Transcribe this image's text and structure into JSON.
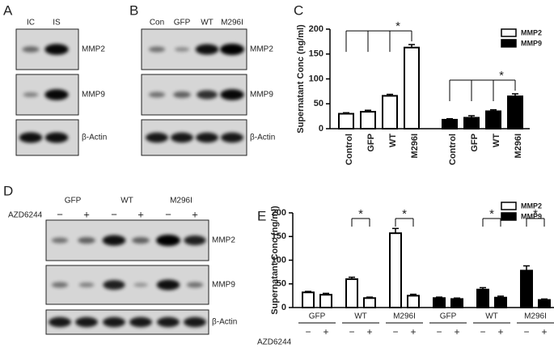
{
  "blots": [
    {
      "panel": "A",
      "lanes": [
        "IC",
        "IS"
      ],
      "rows": [
        "MMP2",
        "MMP9",
        "β-Actin"
      ]
    },
    {
      "panel": "B",
      "lanes": [
        "Con",
        "GFP",
        "WT",
        "M296I"
      ],
      "rows": [
        "MMP2",
        "MMP9",
        "β-Actin"
      ]
    },
    {
      "panel": "D",
      "groups": [
        "GFP",
        "WT",
        "M296I"
      ],
      "treatment": "AZD6244",
      "states": [
        "−",
        "+",
        "−",
        "+",
        "−",
        "+"
      ],
      "rows": [
        "MMP2",
        "MMP9",
        "β-Actin"
      ]
    }
  ],
  "chart_data": [
    {
      "type": "bar",
      "panel": "C",
      "y_label": "Supernatant Conc (ng/ml)",
      "categories": [
        "Control",
        "GFP",
        "WT",
        "M296I",
        "Control",
        "GFP",
        "WT",
        "M296I"
      ],
      "series": [
        {
          "name": "MMP2",
          "color": "#ffffff",
          "values": [
            30,
            34,
            66,
            163,
            null,
            null,
            null,
            null
          ],
          "errors": [
            2,
            3,
            3,
            6,
            null,
            null,
            null,
            null
          ]
        },
        {
          "name": "MMP9",
          "color": "#000000",
          "values": [
            null,
            null,
            null,
            null,
            18,
            22,
            35,
            65
          ],
          "errors": [
            null,
            null,
            null,
            null,
            2,
            4,
            3,
            5
          ]
        }
      ],
      "ylim": [
        0,
        200
      ],
      "yticks": [
        0,
        50,
        100,
        150,
        200
      ],
      "annotations": [
        "*",
        "*"
      ]
    },
    {
      "type": "bar",
      "panel": "E",
      "y_label": "Supernatant Conc (ng/ml)",
      "groups": [
        "GFP",
        "WT",
        "M296I",
        "GFP",
        "WT",
        "M296I"
      ],
      "x_label": "AZD6244",
      "categories": [
        "−",
        "+",
        "−",
        "+",
        "−",
        "+",
        "−",
        "+",
        "−",
        "+",
        "−",
        "+"
      ],
      "series": [
        {
          "name": "MMP2",
          "color": "#ffffff",
          "values": [
            32,
            27,
            60,
            20,
            157,
            25,
            null,
            null,
            null,
            null,
            null,
            null
          ],
          "errors": [
            2,
            3,
            4,
            2,
            10,
            3,
            null,
            null,
            null,
            null,
            null,
            null
          ]
        },
        {
          "name": "MMP9",
          "color": "#000000",
          "values": [
            null,
            null,
            null,
            null,
            null,
            null,
            20,
            18,
            38,
            21,
            78,
            16
          ],
          "errors": [
            null,
            null,
            null,
            null,
            null,
            null,
            2,
            2,
            4,
            3,
            10,
            2
          ]
        }
      ],
      "ylim": [
        0,
        200
      ],
      "yticks": [
        0,
        50,
        100,
        150,
        200
      ],
      "annotations": [
        "*",
        "*",
        "*",
        "*"
      ]
    }
  ]
}
